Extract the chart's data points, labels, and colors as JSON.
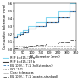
{
  "title": "",
  "xlabel": "El. diameter (mm)",
  "ylabel": "Cumulative tolerance (mm)",
  "xlim": [
    0,
    350
  ],
  "ylim": [
    0.0,
    0.6
  ],
  "yticks": [
    0.0,
    0.1,
    0.2,
    0.3,
    0.4,
    0.5,
    0.6
  ],
  "xticks": [
    0,
    50,
    100,
    150,
    200,
    250,
    300,
    350
  ],
  "lines": [
    {
      "x": [
        0,
        18,
        18,
        30,
        30,
        50,
        50,
        80,
        80,
        120,
        120,
        180,
        180,
        250,
        250,
        315,
        315,
        350
      ],
      "y": [
        0.18,
        0.18,
        0.2,
        0.2,
        0.22,
        0.22,
        0.25,
        0.25,
        0.3,
        0.3,
        0.35,
        0.35,
        0.42,
        0.42,
        0.5,
        0.5,
        0.6,
        0.6
      ],
      "color": "#88d8f0",
      "lw": 0.8,
      "ls": "-",
      "label": "REF d=315-315 a"
    },
    {
      "x": [
        0,
        18,
        18,
        30,
        30,
        50,
        50,
        80,
        80,
        120,
        120,
        180,
        180,
        250,
        250,
        315,
        315,
        350
      ],
      "y": [
        0.16,
        0.16,
        0.18,
        0.18,
        0.2,
        0.2,
        0.22,
        0.22,
        0.27,
        0.27,
        0.3,
        0.3,
        0.35,
        0.35,
        0.42,
        0.42,
        0.5,
        0.5
      ],
      "color": "#404040",
      "lw": 0.8,
      "ls": "-",
      "label": "REF d=315-315 b"
    },
    {
      "x": [
        0,
        18,
        18,
        30,
        30,
        50,
        50,
        80,
        80,
        120,
        120,
        180,
        180,
        250,
        250,
        315,
        315,
        350
      ],
      "y": [
        0.16,
        0.16,
        0.18,
        0.18,
        0.2,
        0.2,
        0.22,
        0.22,
        0.27,
        0.27,
        0.3,
        0.3,
        0.35,
        0.35,
        0.42,
        0.42,
        0.5,
        0.5
      ],
      "color": "#5090c8",
      "lw": 0.7,
      "ls": "--",
      "label": "EN 1092-1 T11 (half-standard)"
    },
    {
      "x": [
        0,
        350
      ],
      "y": [
        0.05,
        0.05
      ],
      "color": "#707070",
      "lw": 0.5,
      "ls": ":",
      "label": "ISO 1101"
    },
    {
      "x": [
        0,
        350
      ],
      "y": [
        0.02,
        0.02
      ],
      "color": "#aaaaaa",
      "lw": 0.5,
      "ls": "--",
      "label": "Close tolerances"
    },
    {
      "x": [
        0,
        18,
        18,
        30,
        30,
        50,
        50,
        80,
        80,
        120,
        120,
        180,
        180,
        250,
        250,
        315,
        315,
        350
      ],
      "y": [
        0.02,
        0.02,
        0.025,
        0.025,
        0.03,
        0.03,
        0.04,
        0.04,
        0.05,
        0.05,
        0.06,
        0.06,
        0.08,
        0.08,
        0.1,
        0.1,
        0.12,
        0.12
      ],
      "color": "#303030",
      "lw": 0.5,
      "ls": "-.",
      "label": "EN 1092-1 T11 (quarter-standard)"
    }
  ],
  "bg_color": "#ffffff",
  "label_fontsize": 3.0,
  "tick_fontsize": 2.8,
  "legend_fontsize": 2.5
}
